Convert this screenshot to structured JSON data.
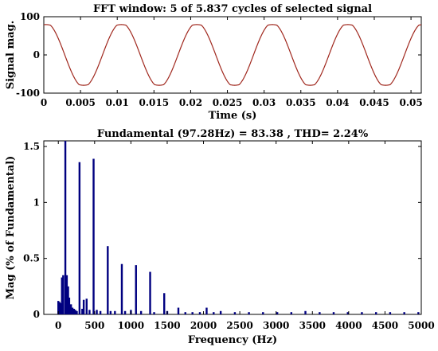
{
  "chart_data": [
    {
      "type": "line",
      "title": "FFT window: 5 of 5.837 cycles of selected signal",
      "xlabel": "Time (s)",
      "ylabel": "Signal mag.",
      "xlim": [
        0,
        0.0514
      ],
      "ylim": [
        -100,
        100
      ],
      "x_ticks": [
        0,
        0.005,
        0.01,
        0.015,
        0.02,
        0.025,
        0.03,
        0.035,
        0.04,
        0.045,
        0.05
      ],
      "x_tick_labels": [
        "0",
        "0.005",
        "0.01",
        "0.015",
        "0.02",
        "0.025",
        "0.03",
        "0.035",
        "0.04",
        "0.045",
        "0.05"
      ],
      "y_ticks": [
        -100,
        0,
        100
      ],
      "y_tick_labels": [
        "-100",
        "0",
        "100"
      ],
      "grid": false,
      "series": [
        {
          "color": "#a0281e",
          "frequency_hz": 97.28,
          "amplitude": 82,
          "phase_deg": 80,
          "flat_top": 0.93
        }
      ]
    },
    {
      "type": "bar",
      "title": "Fundamental (97.28Hz) = 83.38 , THD= 2.24%",
      "xlabel": "Frequency (Hz)",
      "ylabel": "Mag (% of Fundamental)",
      "xlim": [
        -200,
        5000
      ],
      "ylim": [
        0,
        1.55
      ],
      "x_ticks": [
        0,
        500,
        1000,
        1500,
        2000,
        2500,
        3000,
        3500,
        4000,
        4500,
        5000
      ],
      "x_tick_labels": [
        "0",
        "500",
        "1000",
        "1500",
        "2000",
        "2500",
        "3000",
        "3500",
        "4000",
        "4500",
        "5000"
      ],
      "y_ticks": [
        0,
        0.5,
        1,
        1.5
      ],
      "y_tick_labels": [
        "0",
        "0.5",
        "1",
        "1.5"
      ],
      "grid": false,
      "color": "#000080",
      "bars": [
        {
          "x": 0,
          "y": 0.12
        },
        {
          "x": 17,
          "y": 0.11
        },
        {
          "x": 33,
          "y": 0.1
        },
        {
          "x": 50,
          "y": 0.33
        },
        {
          "x": 67,
          "y": 0.35
        },
        {
          "x": 97,
          "y": 1.55
        },
        {
          "x": 117,
          "y": 0.35
        },
        {
          "x": 135,
          "y": 0.25
        },
        {
          "x": 150,
          "y": 0.15
        },
        {
          "x": 175,
          "y": 0.09
        },
        {
          "x": 195,
          "y": 0.06
        },
        {
          "x": 215,
          "y": 0.05
        },
        {
          "x": 235,
          "y": 0.04
        },
        {
          "x": 255,
          "y": 0.03
        },
        {
          "x": 292,
          "y": 1.36
        },
        {
          "x": 330,
          "y": 0.05
        },
        {
          "x": 350,
          "y": 0.13
        },
        {
          "x": 390,
          "y": 0.14
        },
        {
          "x": 430,
          "y": 0.04
        },
        {
          "x": 486,
          "y": 1.39
        },
        {
          "x": 530,
          "y": 0.04
        },
        {
          "x": 580,
          "y": 0.03
        },
        {
          "x": 681,
          "y": 0.61
        },
        {
          "x": 720,
          "y": 0.03
        },
        {
          "x": 780,
          "y": 0.03
        },
        {
          "x": 875,
          "y": 0.45
        },
        {
          "x": 920,
          "y": 0.03
        },
        {
          "x": 1000,
          "y": 0.04
        },
        {
          "x": 1070,
          "y": 0.44
        },
        {
          "x": 1140,
          "y": 0.03
        },
        {
          "x": 1265,
          "y": 0.38
        },
        {
          "x": 1320,
          "y": 0.02
        },
        {
          "x": 1459,
          "y": 0.19
        },
        {
          "x": 1500,
          "y": 0.03
        },
        {
          "x": 1654,
          "y": 0.06
        },
        {
          "x": 1750,
          "y": 0.02
        },
        {
          "x": 1848,
          "y": 0.02
        },
        {
          "x": 1950,
          "y": 0.02
        },
        {
          "x": 2043,
          "y": 0.06
        },
        {
          "x": 2140,
          "y": 0.02
        },
        {
          "x": 2237,
          "y": 0.03
        },
        {
          "x": 2432,
          "y": 0.02
        },
        {
          "x": 2626,
          "y": 0.02
        },
        {
          "x": 2820,
          "y": 0.02
        },
        {
          "x": 3016,
          "y": 0.02
        },
        {
          "x": 3210,
          "y": 0.02
        },
        {
          "x": 3404,
          "y": 0.03
        },
        {
          "x": 3600,
          "y": 0.02
        },
        {
          "x": 3793,
          "y": 0.02
        },
        {
          "x": 3988,
          "y": 0.02
        },
        {
          "x": 4182,
          "y": 0.02
        },
        {
          "x": 4377,
          "y": 0.02
        },
        {
          "x": 4571,
          "y": 0.02
        },
        {
          "x": 4766,
          "y": 0.02
        },
        {
          "x": 4960,
          "y": 0.02
        }
      ]
    }
  ]
}
